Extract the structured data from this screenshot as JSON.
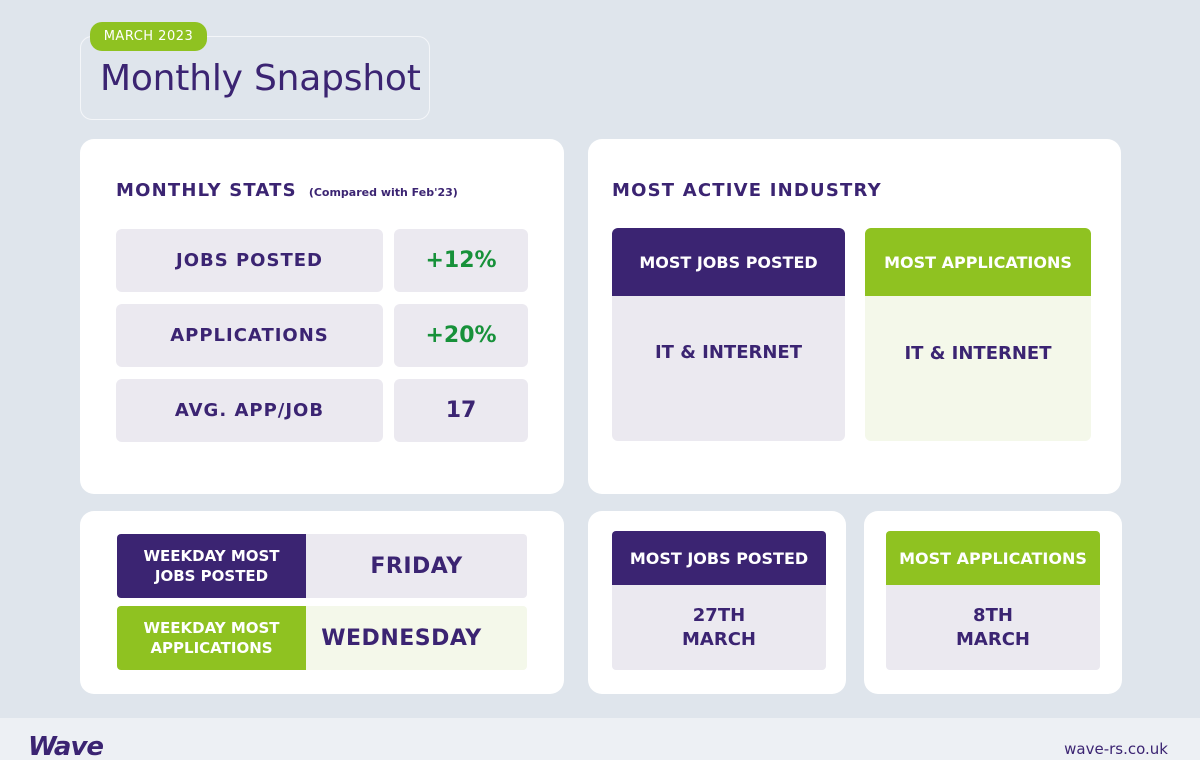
{
  "header": {
    "month": "MARCH 2023",
    "title": "Monthly Snapshot"
  },
  "monthly_stats": {
    "title": "MONTHLY STATS",
    "subtitle": "(Compared with Feb'23)",
    "rows": [
      {
        "label": "JOBS POSTED",
        "value": "+12%"
      },
      {
        "label": "APPLICATIONS",
        "value": "+20%"
      },
      {
        "label": "AVG. APP/JOB",
        "value": "17"
      }
    ]
  },
  "industry": {
    "title": "MOST ACTIVE INDUSTRY",
    "jobs_head": "MOST JOBS POSTED",
    "jobs_value": "IT & INTERNET",
    "apps_head": "MOST APPLICATIONS",
    "apps_value": "IT & INTERNET"
  },
  "weekday": {
    "jobs_label_1": "WEEKDAY MOST",
    "jobs_label_2": "JOBS POSTED",
    "jobs_value": "FRIDAY",
    "apps_label_1": "WEEKDAY MOST",
    "apps_label_2": "APPLICATIONS",
    "apps_value": "WEDNESDAY"
  },
  "dates": {
    "jobs_head": "MOST JOBS POSTED",
    "jobs_day": "27TH",
    "jobs_month": "MARCH",
    "apps_head": "MOST APPLICATIONS",
    "apps_day": "8TH",
    "apps_month": "MARCH"
  },
  "footer": {
    "logo": "Wave",
    "site": "wave-rs.co.uk"
  },
  "colors": {
    "purple": "#3b2472",
    "green": "#8fc221",
    "positive": "#17913a",
    "background": "#dfe5ec"
  }
}
